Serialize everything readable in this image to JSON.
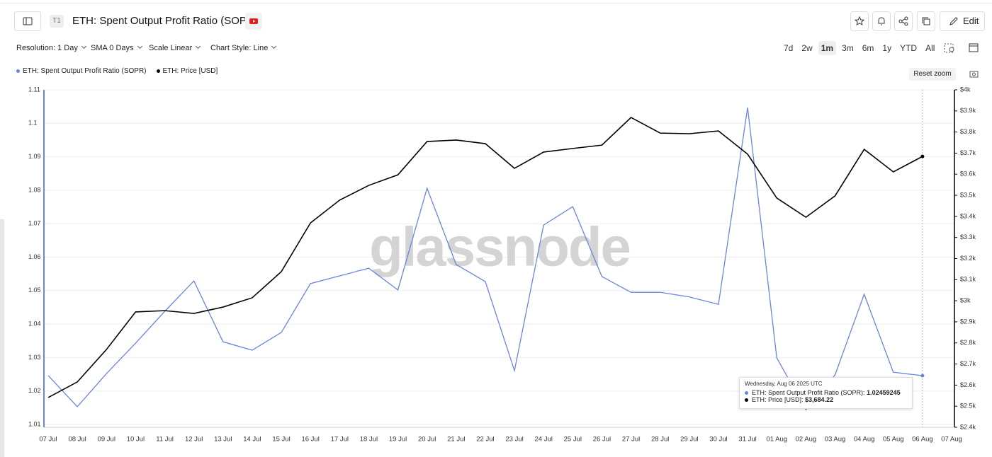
{
  "header": {
    "badge": "T1",
    "title": "ETH: Spent Output Profit Ratio (SOPR)",
    "edit": "Edit"
  },
  "controls": [
    "Resolution: 1 Day",
    "SMA 0 Days",
    "Scale Linear",
    "Chart Style: Line"
  ],
  "ranges": [
    "7d",
    "2w",
    "1m",
    "3m",
    "6m",
    "1y",
    "YTD",
    "All"
  ],
  "active_range": "1m",
  "reset_zoom": "Reset zoom",
  "watermark": "glassnode",
  "chart_data": {
    "type": "line",
    "categories": [
      "07 Jul",
      "08 Jul",
      "09 Jul",
      "10 Jul",
      "11 Jul",
      "12 Jul",
      "13 Jul",
      "14 Jul",
      "15 Jul",
      "16 Jul",
      "17 Jul",
      "18 Jul",
      "19 Jul",
      "20 Jul",
      "21 Jul",
      "22 Jul",
      "23 Jul",
      "24 Jul",
      "25 Jul",
      "26 Jul",
      "27 Jul",
      "28 Jul",
      "29 Jul",
      "30 Jul",
      "31 Jul",
      "01 Aug",
      "02 Aug",
      "03 Aug",
      "04 Aug",
      "05 Aug",
      "06 Aug",
      "07 Aug"
    ],
    "series": [
      {
        "name": "ETH: Spent Output Profit Ratio (SOPR)",
        "color": "#6b84dc",
        "axis": "y",
        "values": [
          1.0246,
          1.0153,
          1.0252,
          1.0343,
          1.0438,
          1.0529,
          1.0347,
          1.0322,
          1.0375,
          1.0521,
          1.0544,
          1.0567,
          1.0502,
          1.0806,
          1.0578,
          1.0527,
          1.0261,
          1.0696,
          1.0751,
          1.0542,
          1.0495,
          1.0495,
          1.0481,
          1.0459,
          1.1047,
          1.0299,
          1.0144,
          1.0248,
          1.0489,
          1.0256,
          1.02459245,
          null
        ]
      },
      {
        "name": "ETH: Price [USD]",
        "color": "#000000",
        "axis": "y2",
        "values": [
          2541,
          2615,
          2769,
          2947,
          2953,
          2940,
          2970,
          3014,
          3138,
          3369,
          3477,
          3547,
          3597,
          3755,
          3762,
          3745,
          3628,
          3705,
          3722,
          3738,
          3869,
          3795,
          3792,
          3805,
          3695,
          3487,
          3396,
          3497,
          3718,
          3611,
          3684.22,
          null
        ]
      }
    ],
    "ylim": [
      1.01,
      1.11
    ],
    "yticks": [
      1.01,
      1.02,
      1.03,
      1.04,
      1.05,
      1.06,
      1.07,
      1.08,
      1.09,
      1.1,
      1.11
    ],
    "y2lim": [
      2400,
      4000
    ],
    "y2ticks": [
      {
        "value": 2400,
        "label": "$2.4k"
      },
      {
        "value": 2500,
        "label": "$2.5k"
      },
      {
        "value": 2600,
        "label": "$2.6k"
      },
      {
        "value": 2700,
        "label": "$2.7k"
      },
      {
        "value": 2800,
        "label": "$2.8k"
      },
      {
        "value": 2900,
        "label": "$2.9k"
      },
      {
        "value": 3000,
        "label": "$3k"
      },
      {
        "value": 3100,
        "label": "$3.1k"
      },
      {
        "value": 3200,
        "label": "$3.2k"
      },
      {
        "value": 3300,
        "label": "$3.3k"
      },
      {
        "value": 3400,
        "label": "$3.4k"
      },
      {
        "value": 3500,
        "label": "$3.5k"
      },
      {
        "value": 3600,
        "label": "$3.6k"
      },
      {
        "value": 3700,
        "label": "$3.7k"
      },
      {
        "value": 3800,
        "label": "$3.8k"
      },
      {
        "value": 3900,
        "label": "$3.9k"
      },
      {
        "value": 4000,
        "label": "$4k"
      }
    ],
    "grid": true
  },
  "tooltip": {
    "date": "Wednesday, Aug 06 2025 UTC",
    "items": [
      {
        "label": "ETH: Spent Output Profit Ratio (SOPR):"
      },
      {
        "label": "ETH: Price [USD]:",
        "value": "$3,684.22"
      }
    ]
  }
}
